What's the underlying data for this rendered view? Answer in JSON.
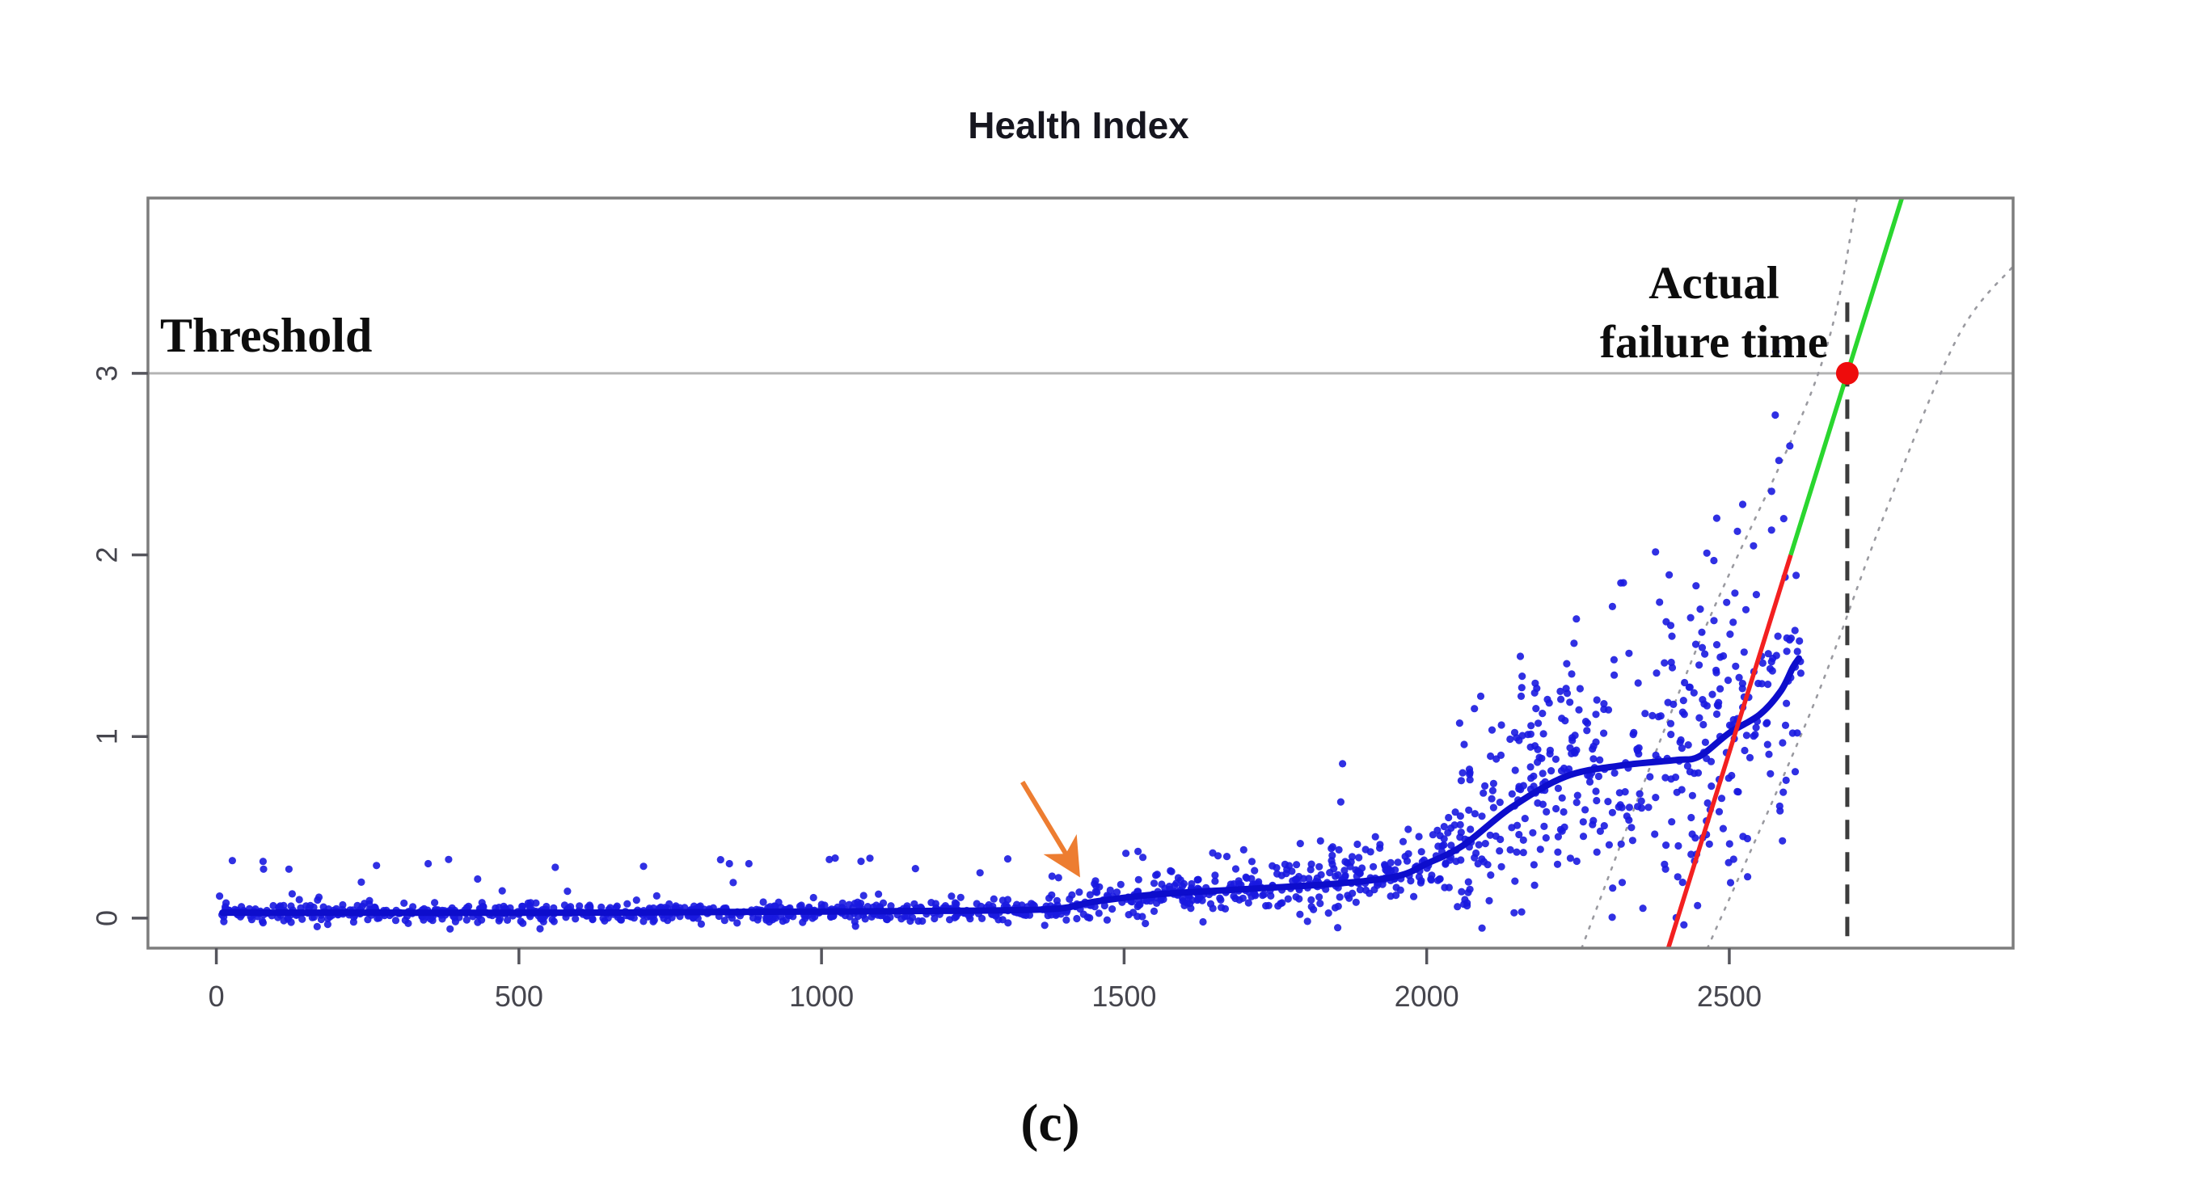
{
  "chart_data": {
    "type": "scatter",
    "title": "Health Index",
    "caption": "(c)",
    "axes": {
      "xlim": [
        -113,
        2969
      ],
      "ylim": [
        -0.165,
        3.965
      ],
      "xticks": [
        0,
        500,
        1000,
        1500,
        2000,
        2500
      ],
      "yticks": [
        0,
        1,
        2,
        3
      ],
      "grid": false,
      "tick_color": "#55555c",
      "tick_label_color": "#45454d",
      "box_color": "#7d7d7d"
    },
    "threshold": {
      "value": 3,
      "label": "Threshold",
      "line_color": "#b4b4b4"
    },
    "failure": {
      "x": 2695,
      "label_line1": "Actual",
      "label_line2": "failure time",
      "dash_line_color": "#3c3c3c",
      "dash_top_y": 3.39,
      "dash_bottom_y": -0.165,
      "marker": {
        "x": 2695,
        "y": 3,
        "color": "#ee0c0c",
        "radius": 14
      }
    },
    "trend_curve": {
      "color": "#0d0dcc",
      "width": 8,
      "points": [
        [
          10,
          0.03
        ],
        [
          300,
          0.03
        ],
        [
          600,
          0.03
        ],
        [
          900,
          0.035
        ],
        [
          1200,
          0.04
        ],
        [
          1380,
          0.05
        ],
        [
          1450,
          0.09
        ],
        [
          1550,
          0.13
        ],
        [
          1700,
          0.16
        ],
        [
          1850,
          0.19
        ],
        [
          1950,
          0.23
        ],
        [
          2000,
          0.3
        ],
        [
          2060,
          0.4
        ],
        [
          2140,
          0.61
        ],
        [
          2230,
          0.78
        ],
        [
          2320,
          0.84
        ],
        [
          2410,
          0.87
        ],
        [
          2450,
          0.89
        ],
        [
          2500,
          1.02
        ],
        [
          2550,
          1.12
        ],
        [
          2585,
          1.25
        ],
        [
          2605,
          1.38
        ],
        [
          2615,
          1.43
        ]
      ]
    },
    "fit_line": {
      "through_x": 2695,
      "through_y": 3,
      "slope": 0.0107,
      "transition_y": 2.0,
      "lower_color": "#f32020",
      "upper_color": "#2ad62f",
      "width": 5.5
    },
    "confidence_bands": {
      "color": "#9a9aa0",
      "left": [
        [
          2256,
          -0.165
        ],
        [
          2448,
          1.5
        ],
        [
          2645,
          2.98
        ],
        [
          2711,
          3.965
        ]
      ],
      "right": [
        [
          2464,
          -0.165
        ],
        [
          2635,
          1.14
        ],
        [
          2755,
          2.21
        ],
        [
          2876,
          3.19
        ],
        [
          2969,
          3.59
        ]
      ]
    },
    "onset_arrow": {
      "color": "#ed7d31",
      "from": [
        1332,
        0.75
      ],
      "to": [
        1419,
        0.27
      ]
    },
    "scatter": {
      "marker_color": "#1a1ae0",
      "marker_radius": 4.6,
      "seed": 7,
      "segments": [
        {
          "x_range": [
            5,
            700
          ],
          "n": 330,
          "sigma": 0.028,
          "outlier_rate": 0.04,
          "outlier_range": [
            0.08,
            0.3
          ]
        },
        {
          "x_range": [
            700,
            1380
          ],
          "n": 330,
          "sigma": 0.028,
          "outlier_rate": 0.04,
          "outlier_range": [
            0.08,
            0.33
          ]
        },
        {
          "x_range": [
            1380,
            1750
          ],
          "n": 200,
          "sigma": 0.055,
          "outlier_rate": 0.05,
          "outlier_range": [
            0.08,
            0.25
          ]
        },
        {
          "x_range": [
            1750,
            2050
          ],
          "n": 190,
          "sigma": 0.085,
          "outlier_rate": 0.05,
          "outlier_range": [
            0.1,
            0.3
          ]
        },
        {
          "x_range": [
            2050,
            2300
          ],
          "n": 200,
          "sigma": 0.28,
          "outlier_rate": 0.1,
          "outlier_range": [
            0.3,
            0.9
          ]
        },
        {
          "x_range": [
            2300,
            2620
          ],
          "n": 230,
          "sigma": 0.38,
          "outlier_rate": 0.1,
          "outlier_range": [
            0.3,
            1.3
          ]
        }
      ],
      "extra_points": [
        [
          1858,
          0.64
        ],
        [
          1861,
          0.85
        ],
        [
          2445,
          1.83
        ],
        [
          2463,
          2.01
        ],
        [
          2577,
          3.12
        ],
        [
          2576,
          2.77
        ],
        [
          2570,
          2.35
        ],
        [
          2582,
          2.52
        ],
        [
          2540,
          2.05
        ],
        [
          2590,
          2.2
        ],
        [
          2600,
          2.6
        ],
        [
          120,
          0.27
        ],
        [
          78,
          0.27
        ],
        [
          350,
          0.3
        ],
        [
          560,
          0.28
        ],
        [
          880,
          0.3
        ],
        [
          1080,
          0.33
        ],
        [
          1262,
          0.25
        ]
      ]
    }
  }
}
